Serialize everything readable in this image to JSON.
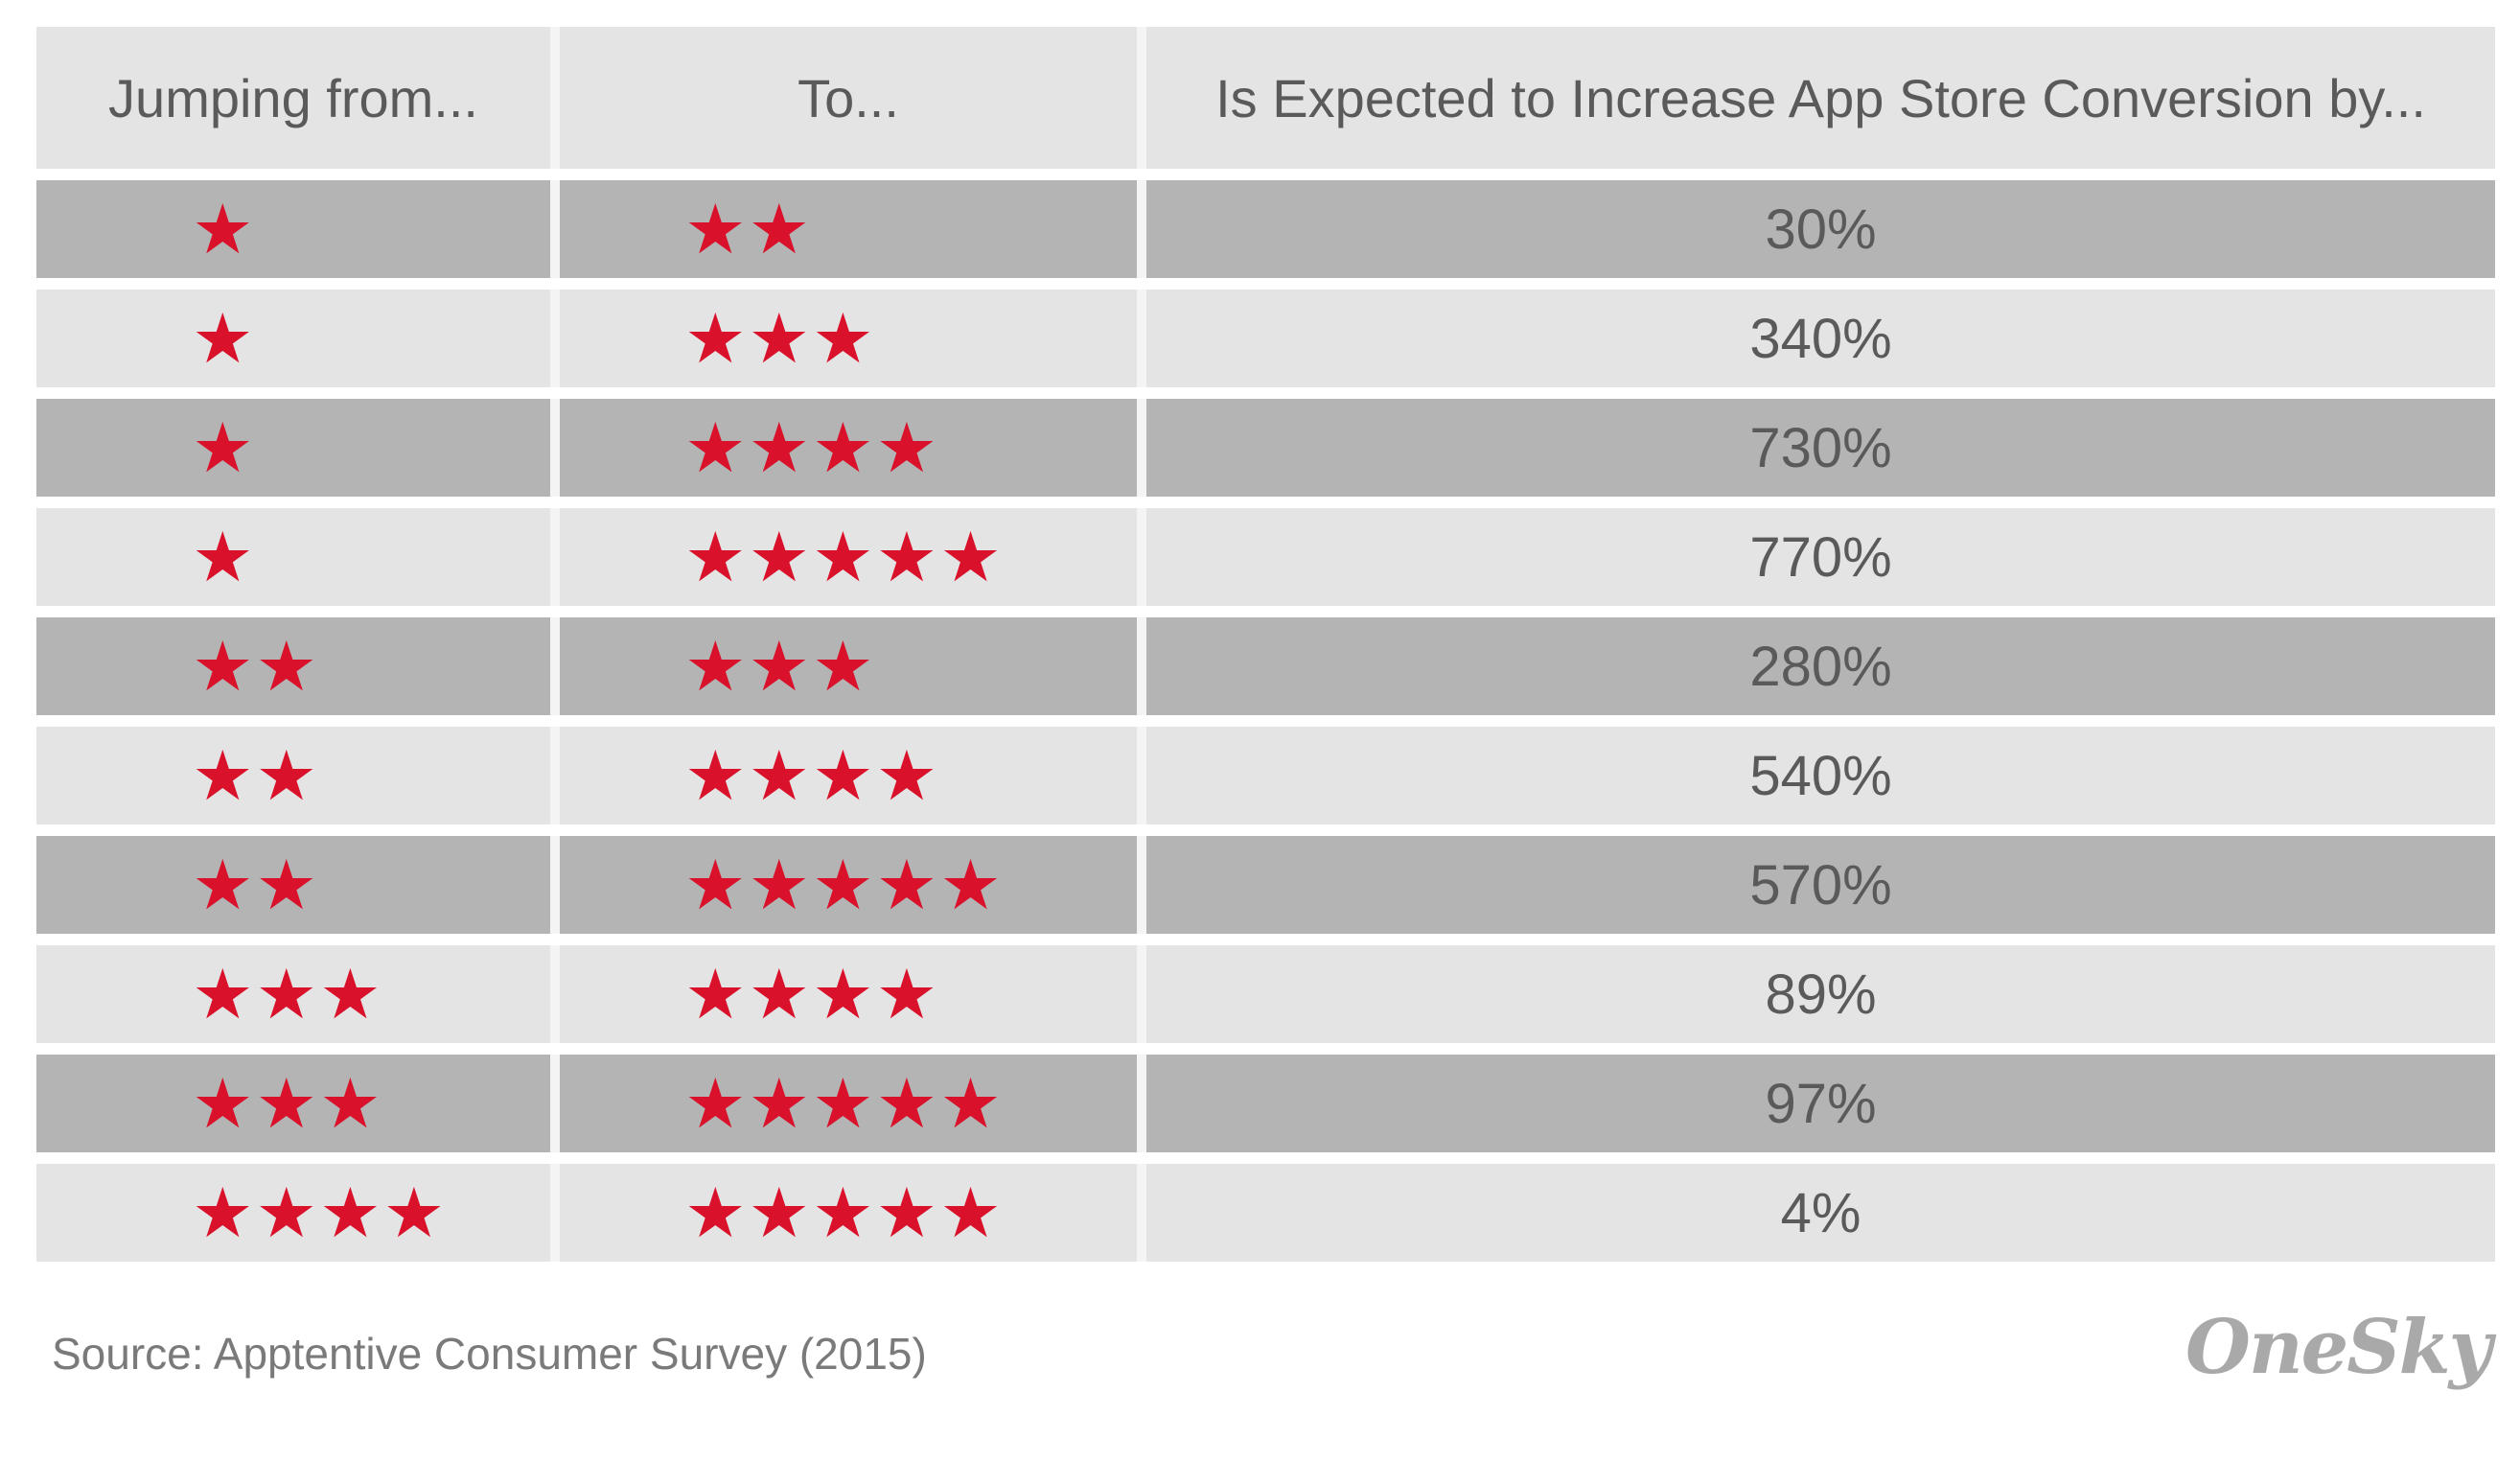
{
  "chart_data": {
    "type": "table",
    "columns": [
      "Jumping from...",
      "To...",
      "Is Expected to Increase App Store Conversion by..."
    ],
    "rows": [
      {
        "from_stars": 1,
        "to_stars": 2,
        "increase": "30%"
      },
      {
        "from_stars": 1,
        "to_stars": 3,
        "increase": "340%"
      },
      {
        "from_stars": 1,
        "to_stars": 4,
        "increase": "730%"
      },
      {
        "from_stars": 1,
        "to_stars": 5,
        "increase": "770%"
      },
      {
        "from_stars": 2,
        "to_stars": 3,
        "increase": "280%"
      },
      {
        "from_stars": 2,
        "to_stars": 4,
        "increase": "540%"
      },
      {
        "from_stars": 2,
        "to_stars": 5,
        "increase": "570%"
      },
      {
        "from_stars": 3,
        "to_stars": 4,
        "increase": "89%"
      },
      {
        "from_stars": 3,
        "to_stars": 5,
        "increase": "97%"
      },
      {
        "from_stars": 4,
        "to_stars": 5,
        "increase": "4%"
      }
    ],
    "star_icon": "star-icon",
    "colors": {
      "star": "#d9112a",
      "row_dark": "#b4b4b4",
      "row_light": "#e4e4e4",
      "text": "#5a5a5a"
    }
  },
  "footer": {
    "source": "Source: Apptentive Consumer Survey (2015)",
    "logo": "OneSky"
  }
}
